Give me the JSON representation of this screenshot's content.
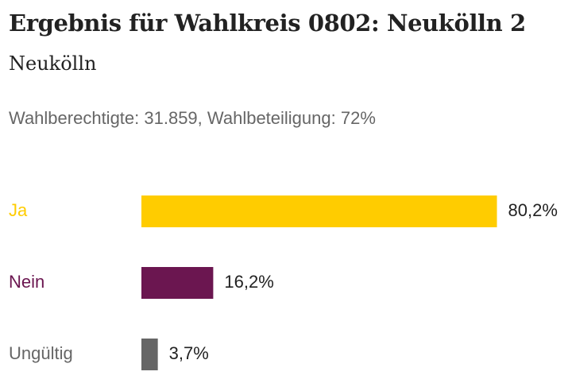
{
  "header": {
    "title": "Ergebnis für Wahlkreis 0802: Neukölln 2",
    "subtitle": "Neukölln",
    "meta": "Wahlberechtigte: 31.859, Wahlbeteiligung: 72%"
  },
  "chart_data": {
    "type": "bar",
    "orientation": "horizontal",
    "categories": [
      "Ja",
      "Nein",
      "Ungültig"
    ],
    "values": [
      80.2,
      16.2,
      3.7
    ],
    "value_labels": [
      "80,2%",
      "16,2%",
      "3,7%"
    ],
    "colors": [
      "#ffcc00",
      "#6b1650",
      "#666666"
    ],
    "label_colors": [
      "#ffcc00",
      "#6b1650",
      "#666666"
    ],
    "value_label_color": "#222222",
    "grid": false,
    "xlim": [
      0,
      100
    ]
  }
}
